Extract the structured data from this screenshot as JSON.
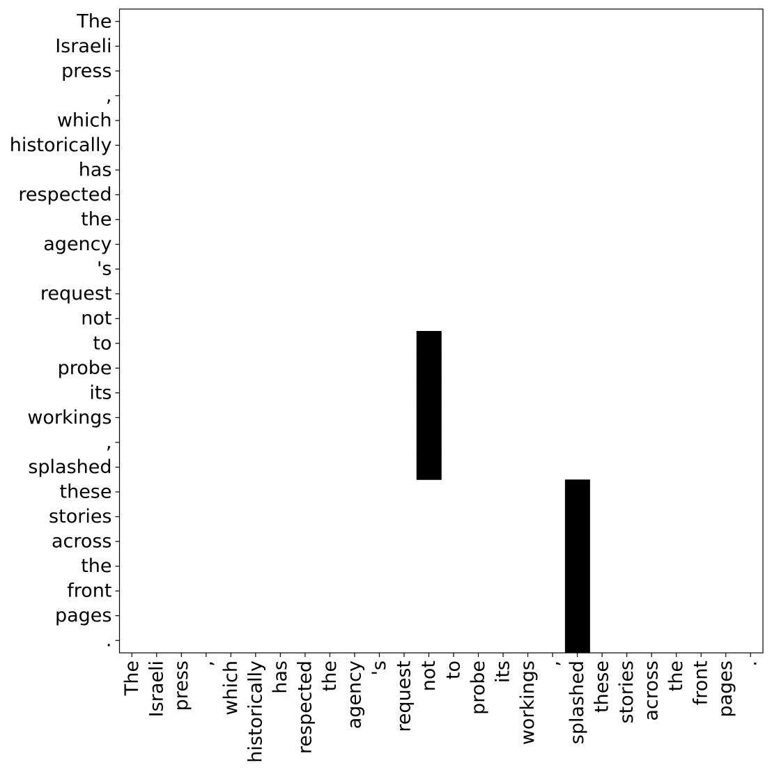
{
  "chart_data": {
    "type": "heatmap",
    "x_labels": [
      "The",
      "Israeli",
      "press",
      ",",
      "which",
      "historically",
      "has",
      "respected",
      "the",
      "agency",
      "'s",
      "request",
      "not",
      "to",
      "probe",
      "its",
      "workings",
      ",",
      "splashed",
      "these",
      "stories",
      "across",
      "the",
      "front",
      "pages",
      "."
    ],
    "y_labels": [
      "The",
      "Israeli",
      "press",
      ",",
      "which",
      "historically",
      "has",
      "respected",
      "the",
      "agency",
      "'s",
      "request",
      "not",
      "to",
      "probe",
      "its",
      "workings",
      ",",
      "splashed",
      "these",
      "stories",
      "across",
      "the",
      "front",
      "pages",
      "."
    ],
    "cells": [
      {
        "x": 12,
        "y": 13,
        "value": 1
      },
      {
        "x": 12,
        "y": 14,
        "value": 1
      },
      {
        "x": 12,
        "y": 15,
        "value": 1
      },
      {
        "x": 12,
        "y": 16,
        "value": 1
      },
      {
        "x": 12,
        "y": 17,
        "value": 1
      },
      {
        "x": 12,
        "y": 18,
        "value": 1
      },
      {
        "x": 18,
        "y": 19,
        "value": 1
      },
      {
        "x": 18,
        "y": 20,
        "value": 1
      },
      {
        "x": 18,
        "y": 21,
        "value": 1
      },
      {
        "x": 18,
        "y": 22,
        "value": 1
      },
      {
        "x": 18,
        "y": 23,
        "value": 1
      },
      {
        "x": 18,
        "y": 24,
        "value": 1
      },
      {
        "x": 18,
        "y": 25,
        "value": 1
      }
    ],
    "cell_color": "#000000",
    "background_color": "#ffffff",
    "grid": false,
    "legend": "none"
  }
}
